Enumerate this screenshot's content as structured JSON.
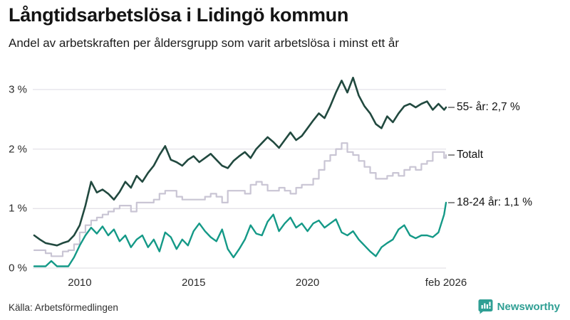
{
  "header": {
    "title": "Långtidsarbetslösa i Lidingö kommun",
    "subtitle": "Andel av arbetskraften per åldersgrupp som varit arbetslösa i minst ett år"
  },
  "footer": {
    "source": "Källa: Arbetsförmedlingen",
    "brand": "Newsworthy",
    "brand_icon": "bar-chart-speech-bubble-icon",
    "brand_color": "#2f9f94"
  },
  "colors": {
    "background": "#ffffff",
    "grid": "#e4e2e8",
    "axis_text": "#2b2b2b",
    "label_text": "#111111",
    "series_55": "#21493f",
    "series_total": "#c9c5d4",
    "series_18_24": "#149987"
  },
  "chart_data": {
    "type": "line",
    "title": "Långtidsarbetslösa i Lidingö kommun",
    "subtitle": "Andel av arbetskraften per åldersgrupp som varit arbetslösa i minst ett år",
    "x_unit": "decimal_year",
    "xlim": [
      2008,
      2026.083
    ],
    "ylim": [
      0,
      3.3
    ],
    "grid": "horizontal",
    "legend_position": "right-of-line-ends",
    "yticks": [
      {
        "value": 0,
        "label": "0 %"
      },
      {
        "value": 1,
        "label": "1 %"
      },
      {
        "value": 2,
        "label": "2 %"
      },
      {
        "value": 3,
        "label": "3 %"
      }
    ],
    "xticks": [
      {
        "value": 2010,
        "label": "2010"
      },
      {
        "value": 2015,
        "label": "2015"
      },
      {
        "value": 2020,
        "label": "2020"
      },
      {
        "value": 2026.083,
        "label": "feb 2026"
      }
    ],
    "x": [
      2008,
      2008.25,
      2008.5,
      2008.75,
      2009,
      2009.25,
      2009.5,
      2009.75,
      2010,
      2010.25,
      2010.5,
      2010.75,
      2011,
      2011.25,
      2011.5,
      2011.75,
      2012,
      2012.25,
      2012.5,
      2012.75,
      2013,
      2013.25,
      2013.5,
      2013.75,
      2014,
      2014.25,
      2014.5,
      2014.75,
      2015,
      2015.25,
      2015.5,
      2015.75,
      2016,
      2016.25,
      2016.5,
      2016.75,
      2017,
      2017.25,
      2017.5,
      2017.75,
      2018,
      2018.25,
      2018.5,
      2018.75,
      2019,
      2019.25,
      2019.5,
      2019.75,
      2020,
      2020.25,
      2020.5,
      2020.75,
      2021,
      2021.25,
      2021.5,
      2021.75,
      2022,
      2022.25,
      2022.5,
      2022.75,
      2023,
      2023.25,
      2023.5,
      2023.75,
      2024,
      2024.25,
      2024.5,
      2024.75,
      2025,
      2025.25,
      2025.5,
      2025.75,
      2026,
      2026.083
    ],
    "series": [
      {
        "name": "55- år",
        "end_label": "55- år: 2,7 %",
        "latest_value": "2,7 %",
        "color": "#21493f",
        "width": 2.6,
        "style": "line",
        "values": [
          0.55,
          0.48,
          0.42,
          0.4,
          0.38,
          0.42,
          0.45,
          0.55,
          0.72,
          1.05,
          1.45,
          1.27,
          1.32,
          1.25,
          1.15,
          1.28,
          1.45,
          1.35,
          1.55,
          1.45,
          1.6,
          1.72,
          1.9,
          2.05,
          1.82,
          1.78,
          1.72,
          1.82,
          1.88,
          1.78,
          1.85,
          1.92,
          1.82,
          1.72,
          1.68,
          1.8,
          1.88,
          1.95,
          1.85,
          2.0,
          2.1,
          2.2,
          2.12,
          2.02,
          2.15,
          2.28,
          2.15,
          2.22,
          2.35,
          2.48,
          2.6,
          2.52,
          2.72,
          2.95,
          3.15,
          2.95,
          3.2,
          2.9,
          2.72,
          2.6,
          2.42,
          2.35,
          2.55,
          2.45,
          2.6,
          2.72,
          2.76,
          2.7,
          2.76,
          2.8,
          2.66,
          2.76,
          2.66,
          2.7
        ]
      },
      {
        "name": "Totalt",
        "end_label": "Totalt",
        "latest_value": "1,9 %",
        "color": "#c9c5d4",
        "width": 2.2,
        "style": "step",
        "values": [
          0.3,
          0.3,
          0.25,
          0.2,
          0.2,
          0.28,
          0.3,
          0.4,
          0.6,
          0.72,
          0.8,
          0.85,
          0.9,
          0.95,
          1.0,
          1.05,
          1.05,
          0.95,
          1.1,
          1.1,
          1.1,
          1.15,
          1.25,
          1.3,
          1.3,
          1.2,
          1.15,
          1.15,
          1.15,
          1.15,
          1.2,
          1.25,
          1.2,
          1.1,
          1.3,
          1.3,
          1.3,
          1.25,
          1.4,
          1.45,
          1.4,
          1.3,
          1.3,
          1.35,
          1.3,
          1.25,
          1.35,
          1.4,
          1.4,
          1.5,
          1.65,
          1.8,
          1.9,
          2.0,
          2.1,
          1.95,
          1.9,
          1.8,
          1.7,
          1.6,
          1.5,
          1.5,
          1.55,
          1.6,
          1.55,
          1.65,
          1.7,
          1.65,
          1.75,
          1.8,
          1.95,
          1.95,
          1.85,
          1.9
        ]
      },
      {
        "name": "18-24 år",
        "end_label": "18-24 år: 1,1 %",
        "latest_value": "1,1 %",
        "color": "#149987",
        "width": 2.4,
        "style": "line",
        "values": [
          0.03,
          0.03,
          0.03,
          0.12,
          0.03,
          0.03,
          0.03,
          0.18,
          0.38,
          0.55,
          0.68,
          0.58,
          0.7,
          0.55,
          0.65,
          0.45,
          0.55,
          0.35,
          0.48,
          0.55,
          0.35,
          0.48,
          0.28,
          0.6,
          0.52,
          0.32,
          0.48,
          0.38,
          0.62,
          0.75,
          0.62,
          0.52,
          0.45,
          0.65,
          0.32,
          0.18,
          0.32,
          0.48,
          0.72,
          0.58,
          0.55,
          0.78,
          0.9,
          0.62,
          0.75,
          0.85,
          0.68,
          0.75,
          0.62,
          0.75,
          0.8,
          0.68,
          0.75,
          0.82,
          0.6,
          0.55,
          0.62,
          0.48,
          0.38,
          0.28,
          0.2,
          0.35,
          0.42,
          0.48,
          0.65,
          0.72,
          0.55,
          0.5,
          0.55,
          0.55,
          0.52,
          0.6,
          0.9,
          1.1
        ]
      }
    ]
  }
}
